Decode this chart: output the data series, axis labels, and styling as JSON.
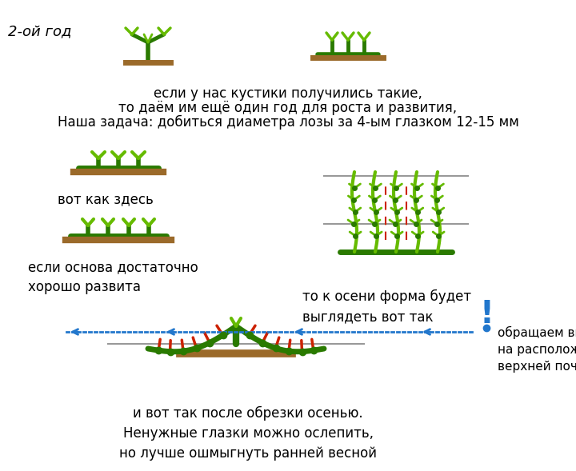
{
  "bg_color": "#ffffff",
  "title_label": "2-ой год",
  "text1": "если у нас кустики получились такие,",
  "text2": "то даём им ещё один год для роста и развития,",
  "text3": "Наша задача: добиться диаметра лозы за 4-ым глазком 12-15 мм",
  "text_vot_kak": "вот как здесь",
  "text_esli": "если основа достаточно\nхорошо развита",
  "text_to_k": "то к осени форма будет\nвыглядеть вот так",
  "text_obr": "обращаем внимание\nна расположение\nверхней почки",
  "text_bottom": "и вот так после обрезки осенью.\nНенужные глазки можно ослепить,\nно лучше ошмыгнуть ранней весной",
  "green_dark": "#2a7a00",
  "green_mid": "#3da000",
  "green_light": "#66bb00",
  "brown": "#9b6a2a",
  "red": "#cc2200",
  "blue": "#2277cc",
  "gray": "#999999",
  "figsize": [
    7.2,
    5.89
  ],
  "dpi": 100
}
